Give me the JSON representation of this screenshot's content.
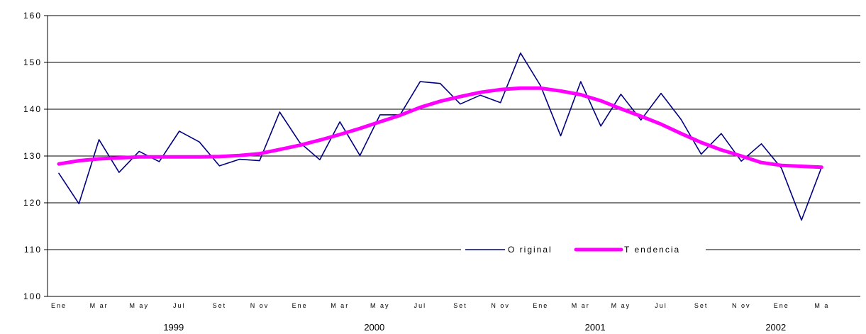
{
  "chart_data": {
    "type": "line",
    "title": "",
    "xlabel": "",
    "ylabel": "",
    "ylim": [
      100,
      160
    ],
    "yticks": [
      100,
      110,
      120,
      130,
      140,
      150,
      160
    ],
    "grid": "horizontal",
    "legend_position": "bottom-center",
    "month_labels": [
      "Ene",
      "M ar",
      "M ay",
      "Jul",
      "Set",
      "N ov",
      "Ene",
      "M ar",
      "M ay",
      "Jul",
      "Set",
      "N ov",
      "Ene",
      "M ar",
      "M ay",
      "Jul",
      "Set",
      "N ov",
      "Ene",
      "M a"
    ],
    "year_labels": [
      {
        "label": "1999",
        "at_index": 6
      },
      {
        "label": "2000",
        "at_index": 16
      },
      {
        "label": "2001",
        "at_index": 27
      },
      {
        "label": "2002",
        "at_index": 36
      }
    ],
    "series": [
      {
        "name": "O riginal",
        "color": "#000080",
        "values": [
          126.3,
          119.8,
          133.5,
          126.5,
          131.0,
          128.8,
          135.3,
          133.0,
          127.9,
          129.3,
          129.0,
          139.4,
          132.9,
          129.2,
          137.3,
          130.1,
          138.8,
          138.8,
          145.9,
          145.5,
          141.1,
          143.0,
          141.4,
          152.0,
          145.0,
          134.3,
          145.9,
          136.4,
          143.2,
          137.7,
          143.4,
          137.8,
          130.4,
          134.8,
          128.9,
          132.6,
          127.4,
          116.3,
          127.6
        ]
      },
      {
        "name": "T endencia",
        "color": "#ff00ff",
        "values": [
          128.3,
          129.0,
          129.4,
          129.6,
          129.8,
          129.8,
          129.8,
          129.8,
          129.9,
          130.1,
          130.5,
          131.4,
          132.3,
          133.4,
          134.6,
          135.9,
          137.3,
          138.7,
          140.4,
          141.7,
          142.7,
          143.6,
          144.2,
          144.5,
          144.5,
          143.9,
          143.1,
          141.8,
          140.1,
          138.5,
          136.8,
          134.8,
          132.9,
          131.3,
          130.0,
          128.6,
          128.0,
          127.8,
          127.6
        ]
      }
    ]
  }
}
